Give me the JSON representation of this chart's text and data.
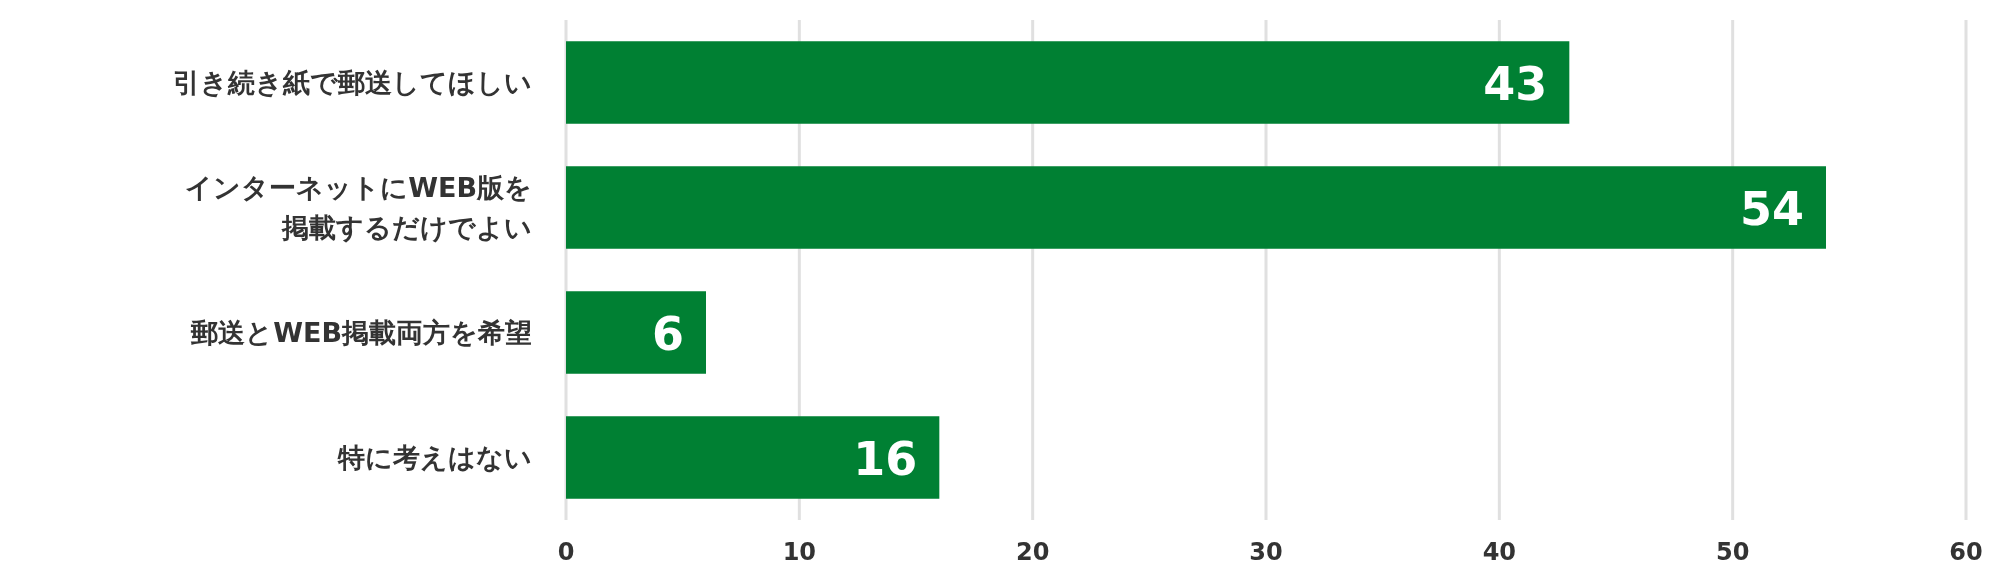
{
  "chart_data": {
    "type": "bar",
    "orientation": "horizontal",
    "categories": [
      "引き続き紙で郵送してほしい",
      "インターネットにWEB版を掲載するだけでよい",
      "郵送とWEB掲載両方を希望",
      "特に考えはない"
    ],
    "values": [
      43,
      54,
      6,
      16
    ],
    "color": "#008033",
    "xlim": [
      0,
      60
    ],
    "xticks": [
      0,
      10,
      20,
      30,
      40,
      50,
      60
    ],
    "grid": "x",
    "data_labels": true
  }
}
